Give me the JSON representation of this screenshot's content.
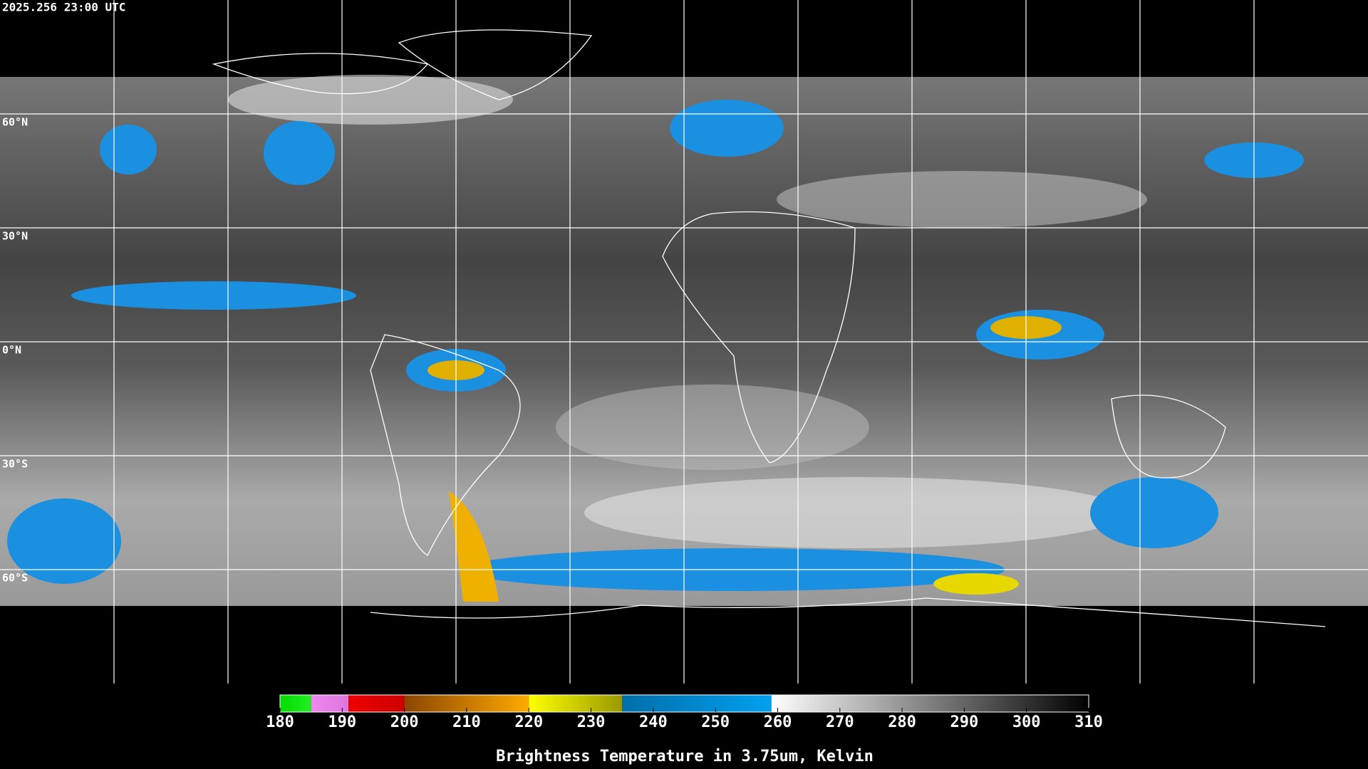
{
  "timestamp": "2025.256 23:00 UTC",
  "latitudes": [
    {
      "value": 60,
      "label": "60°N"
    },
    {
      "value": 30,
      "label": "30°N"
    },
    {
      "value": 0,
      "label": "0°N"
    },
    {
      "value": -30,
      "label": "30°S"
    },
    {
      "value": -60,
      "label": "60°S"
    }
  ],
  "colorbar": {
    "title": "Brightness Temperature in 3.75um, Kelvin",
    "range": [
      180,
      310
    ],
    "ticks": [
      180,
      190,
      200,
      210,
      220,
      230,
      240,
      250,
      260,
      270,
      280,
      290,
      300,
      310
    ],
    "segments": [
      {
        "from": 180,
        "to": 185,
        "colors": [
          "#00dd00",
          "#22ee22"
        ]
      },
      {
        "from": 185,
        "to": 191,
        "colors": [
          "#ee88ee",
          "#dd77dd"
        ]
      },
      {
        "from": 191,
        "to": 200,
        "colors": [
          "#ee0000",
          "#cc0000"
        ]
      },
      {
        "from": 200,
        "to": 220,
        "colors": [
          "#8b4500",
          "#ffaa00"
        ]
      },
      {
        "from": 220,
        "to": 235,
        "colors": [
          "#ffff00",
          "#999900"
        ]
      },
      {
        "from": 235,
        "to": 259,
        "colors": [
          "#006eaa",
          "#00a0f0"
        ]
      },
      {
        "from": 259,
        "to": 310,
        "colors": [
          "#ffffff",
          "#000000"
        ]
      }
    ]
  }
}
